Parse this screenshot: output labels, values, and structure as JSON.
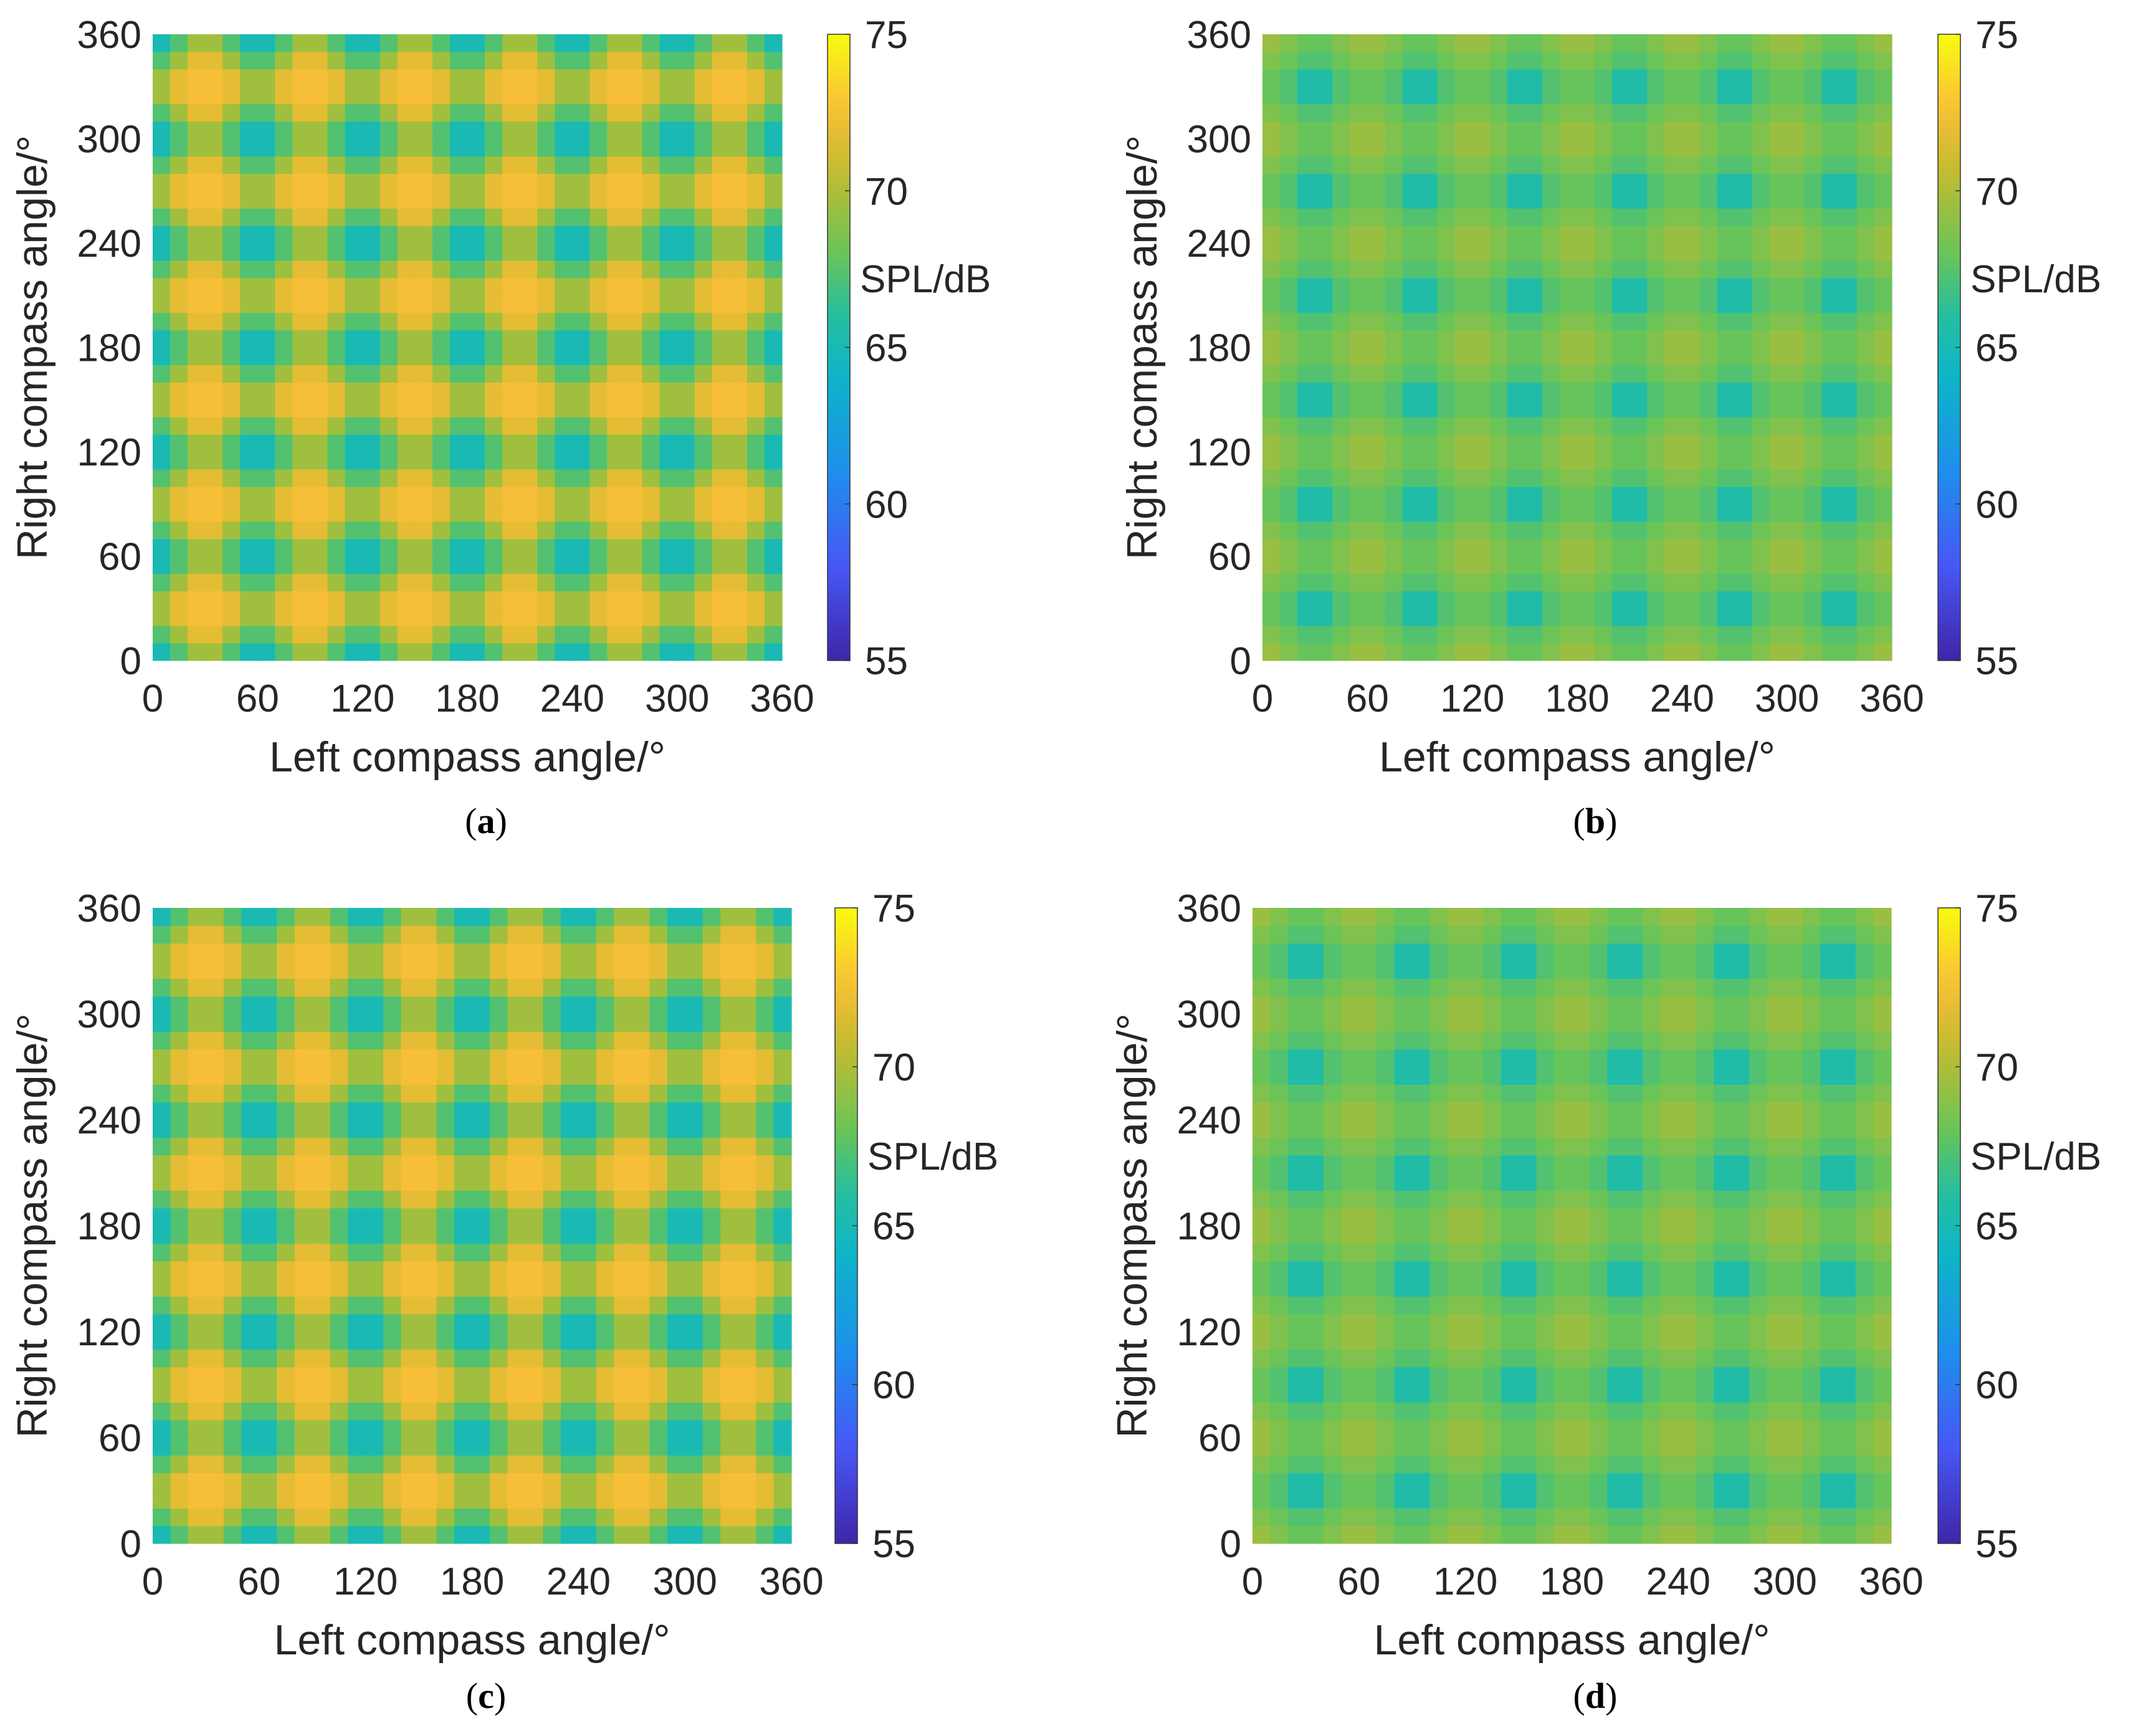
{
  "chart_data": [
    {
      "type": "heatmap",
      "caption": "a",
      "pattern": "circles",
      "phase": 0,
      "xlabel": "Left compass angle/°",
      "ylabel": "Right compass angle/°",
      "xlim": [
        0,
        360
      ],
      "ylim": [
        0,
        360
      ],
      "xticks": [
        "0",
        "60",
        "120",
        "180",
        "240",
        "300",
        "360"
      ],
      "yticks": [
        "0",
        "60",
        "120",
        "180",
        "240",
        "300",
        "360"
      ],
      "grid_n": 36,
      "colorbar": {
        "label": "SPL/dB",
        "range": [
          55,
          75
        ],
        "ticks": [
          "55",
          "60",
          "65",
          "70",
          "75"
        ]
      },
      "value_range_estimate": [
        63,
        72.5
      ]
    },
    {
      "type": "heatmap",
      "caption": "b",
      "pattern": "grid",
      "phase": 0,
      "xlabel": "Left compass angle/°",
      "ylabel": "Right compass angle/°",
      "xlim": [
        0,
        360
      ],
      "ylim": [
        0,
        360
      ],
      "xticks": [
        "0",
        "60",
        "120",
        "180",
        "240",
        "300",
        "360"
      ],
      "yticks": [
        "0",
        "60",
        "120",
        "180",
        "240",
        "300",
        "360"
      ],
      "grid_n": 36,
      "colorbar": {
        "label": "SPL/dB",
        "range": [
          55,
          75
        ],
        "ticks": [
          "55",
          "60",
          "65",
          "70",
          "75"
        ]
      },
      "value_range_estimate": [
        64,
        70
      ]
    },
    {
      "type": "heatmap",
      "caption": "c",
      "pattern": "circles",
      "phase": 60,
      "xlabel": "Left compass angle/°",
      "ylabel": "Right compass angle/°",
      "xlim": [
        0,
        360
      ],
      "ylim": [
        0,
        360
      ],
      "xticks": [
        "0",
        "60",
        "120",
        "180",
        "240",
        "300",
        "360"
      ],
      "yticks": [
        "0",
        "60",
        "120",
        "180",
        "240",
        "300",
        "360"
      ],
      "grid_n": 36,
      "colorbar": {
        "label": "SPL/dB",
        "range": [
          55,
          75
        ],
        "ticks": [
          "55",
          "60",
          "65",
          "70",
          "75"
        ]
      },
      "value_range_estimate": [
        63,
        72.5
      ]
    },
    {
      "type": "heatmap",
      "caption": "d",
      "pattern": "grid",
      "phase": 0,
      "xlabel": "Left compass angle/°",
      "ylabel": "Right compass angle/°",
      "xlim": [
        0,
        360
      ],
      "ylim": [
        0,
        360
      ],
      "xticks": [
        "0",
        "60",
        "120",
        "180",
        "240",
        "300",
        "360"
      ],
      "yticks": [
        "0",
        "60",
        "120",
        "180",
        "240",
        "300",
        "360"
      ],
      "grid_n": 36,
      "colorbar": {
        "label": "SPL/dB",
        "range": [
          55,
          75
        ],
        "ticks": [
          "55",
          "60",
          "65",
          "70",
          "75"
        ]
      },
      "value_range_estimate": [
        64,
        70
      ]
    }
  ]
}
